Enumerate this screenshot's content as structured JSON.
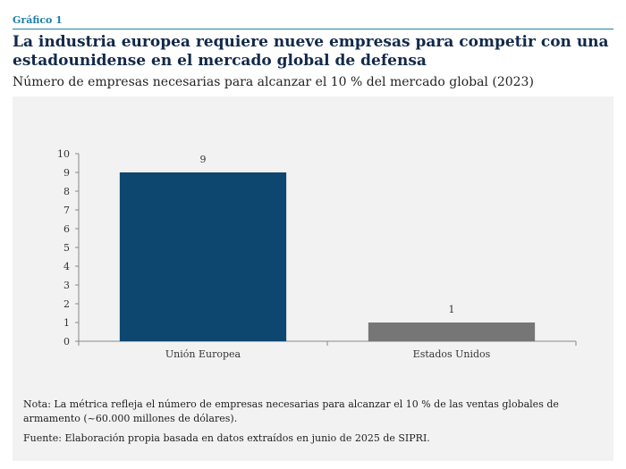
{
  "header": {
    "kicker": "Gráfico 1",
    "title": "La industria europea requiere nueve empresas para competir con una estadounidense en el mercado global de defensa",
    "subtitle": "Número de empresas necesarias para alcanzar el 10 % del mercado global (2023)"
  },
  "chart_data": {
    "type": "bar",
    "categories": [
      "Unión Europea",
      "Estados Unidos"
    ],
    "values": [
      9,
      1
    ],
    "value_labels": [
      "9",
      "1"
    ],
    "colors": [
      "#0d4770",
      "#767676"
    ],
    "ylim": [
      0,
      10
    ],
    "yticks": [
      "0",
      "1",
      "2",
      "3",
      "4",
      "5",
      "6",
      "7",
      "8",
      "9",
      "10"
    ],
    "grid": false,
    "legend": "none"
  },
  "notes": {
    "nota": "Nota: La métrica refleja el número de empresas necesarias para alcanzar el 10 % de las ventas globales de armamento (~60.000 millones de dólares).",
    "fuente": "Fuente: Elaboración propia basada en datos extraídos en junio de 2025 de SIPRI."
  }
}
